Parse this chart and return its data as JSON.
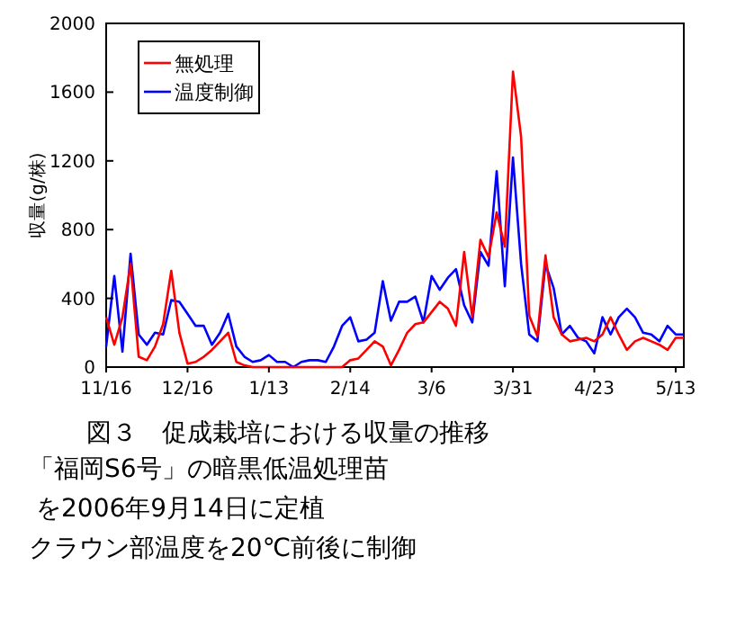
{
  "chart_data": {
    "type": "line",
    "title": "図３　促成栽培における収量の推移",
    "ylabel": "収量(g/株)",
    "annotations": [
      "「福岡S6号」の暗黒低温処理苗",
      "を2006年9月14日に定植",
      "クラウン部温度を20℃前後に制御"
    ],
    "categories": [
      "11/16",
      null,
      null,
      null,
      null,
      null,
      null,
      null,
      null,
      null,
      "12/16",
      null,
      null,
      null,
      null,
      null,
      null,
      null,
      null,
      null,
      "1/13",
      null,
      null,
      null,
      null,
      null,
      null,
      null,
      null,
      null,
      "2/14",
      null,
      null,
      null,
      null,
      null,
      null,
      null,
      null,
      null,
      "3/6",
      null,
      null,
      null,
      null,
      null,
      null,
      null,
      null,
      null,
      "3/31",
      null,
      null,
      null,
      null,
      null,
      null,
      null,
      null,
      null,
      "4/23",
      null,
      null,
      null,
      null,
      null,
      null,
      null,
      null,
      null,
      "5/13",
      null
    ],
    "ylim": [
      0,
      2000
    ],
    "yticks": [
      0,
      400,
      800,
      1200,
      1600,
      2000
    ],
    "legend": "top left",
    "marker": "none",
    "line_style": "solid",
    "series": [
      {
        "name": "無処理",
        "color": "#ff0000",
        "values": [
          290,
          130,
          290,
          600,
          60,
          40,
          120,
          250,
          560,
          200,
          20,
          30,
          60,
          100,
          150,
          200,
          30,
          10,
          0,
          0,
          0,
          0,
          0,
          0,
          0,
          0,
          0,
          0,
          0,
          0,
          40,
          50,
          100,
          150,
          120,
          10,
          100,
          200,
          250,
          260,
          320,
          380,
          340,
          240,
          670,
          290,
          740,
          640,
          900,
          700,
          1720,
          1340,
          300,
          180,
          650,
          290,
          190,
          150,
          160,
          170,
          150,
          190,
          290,
          190,
          100,
          150,
          170,
          150,
          130,
          100,
          170,
          170
        ]
      },
      {
        "name": "温度制御",
        "color": "#0000ff",
        "values": [
          120,
          530,
          90,
          660,
          190,
          130,
          200,
          190,
          390,
          380,
          310,
          240,
          240,
          130,
          200,
          310,
          120,
          60,
          30,
          40,
          70,
          30,
          30,
          0,
          30,
          40,
          40,
          30,
          120,
          240,
          290,
          150,
          160,
          200,
          500,
          270,
          380,
          380,
          410,
          260,
          530,
          450,
          520,
          570,
          360,
          260,
          670,
          590,
          1140,
          470,
          1220,
          600,
          190,
          150,
          600,
          460,
          190,
          240,
          170,
          150,
          80,
          290,
          190,
          290,
          340,
          290,
          200,
          190,
          150,
          240,
          190,
          190
        ]
      }
    ]
  }
}
